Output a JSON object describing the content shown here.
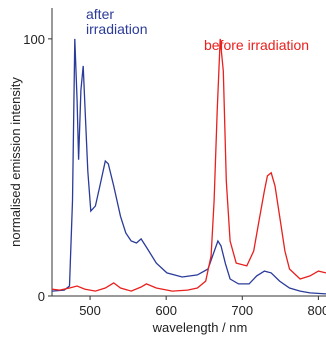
{
  "chart_data": {
    "type": "line",
    "xlabel": "wavelength / nm",
    "ylabel": "normalised emission intensity",
    "xlim": [
      450,
      810
    ],
    "ylim": [
      0,
      112
    ],
    "xticks": [
      500,
      600,
      700,
      800
    ],
    "yticks": [
      0,
      100
    ],
    "annotations": [
      {
        "lines": [
          "after",
          "irradiation"
        ],
        "series": 0
      },
      {
        "lines": [
          "before irradiation"
        ],
        "series": 1
      }
    ],
    "series": [
      {
        "name": "after irradiation",
        "color": "#2b3b9a",
        "x": [
          450,
          466,
          473,
          477,
          480,
          483,
          485,
          488,
          491,
          493,
          497,
          501,
          507,
          513,
          520,
          524,
          531,
          540,
          547,
          554,
          561,
          567,
          574,
          587,
          601,
          621,
          641,
          655,
          661,
          668,
          672,
          678,
          684,
          695,
          709,
          719,
          729,
          738,
          749,
          762,
          776,
          789,
          810
        ],
        "values": [
          1.9,
          2.3,
          3.9,
          37,
          100,
          76,
          53,
          80,
          89.5,
          76,
          48.6,
          33,
          35,
          42.8,
          52.5,
          51.4,
          42.8,
          31,
          24.5,
          21.4,
          20.6,
          22.2,
          19,
          12.8,
          9,
          7.4,
          8.2,
          10.5,
          15.6,
          21.4,
          19.5,
          12.5,
          6.6,
          4.7,
          4.7,
          7.8,
          9.7,
          9,
          5.8,
          3.1,
          1.9,
          1.2,
          0.8
        ]
      },
      {
        "name": "before irradiation",
        "color": "#e8201e",
        "x": [
          450,
          460,
          473,
          483,
          493,
          507,
          520,
          531,
          540,
          554,
          567,
          574,
          587,
          608,
          628,
          641,
          652,
          659,
          663,
          667,
          671,
          675,
          679,
          684,
          692,
          706,
          715,
          722,
          729,
          733,
          738,
          743,
          749,
          756,
          762,
          776,
          789,
          800,
          810
        ],
        "values": [
          2.7,
          2.3,
          3.1,
          3.9,
          2.7,
          1.9,
          3.1,
          5.1,
          3.1,
          1.9,
          3.5,
          4.7,
          3.1,
          1.9,
          2.3,
          3.1,
          5.8,
          15.6,
          37,
          72,
          100,
          87.5,
          44.7,
          21.4,
          12.8,
          11.7,
          17.5,
          29.2,
          40.9,
          46.7,
          47.9,
          42.8,
          31.1,
          17.5,
          10.5,
          6.6,
          7.8,
          9.7,
          9
        ]
      }
    ]
  }
}
